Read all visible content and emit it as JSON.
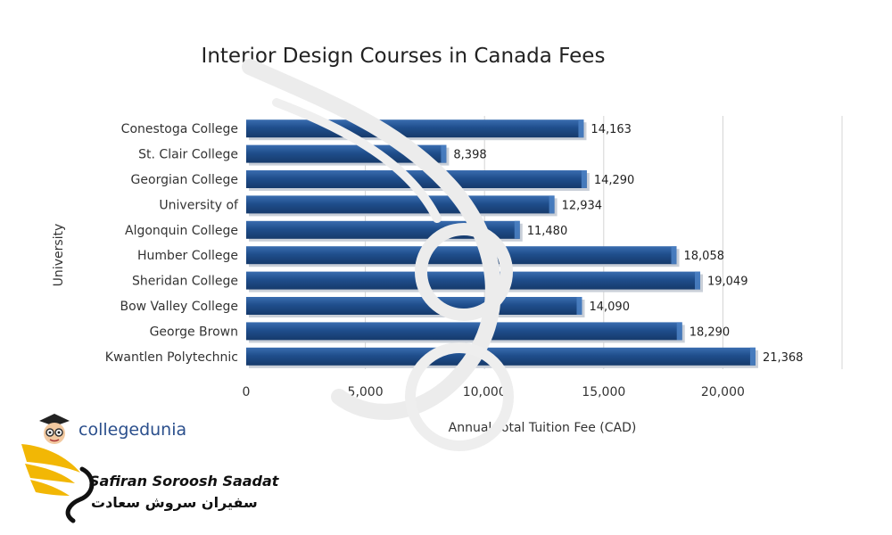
{
  "chart_data": {
    "type": "bar",
    "orientation": "horizontal",
    "title": "Interior Design Courses in Canada Fees",
    "xlabel": "Annual Total Tuition Fee (CAD)",
    "ylabel": "University",
    "categories": [
      "Conestoga College",
      "St. Clair College",
      "Georgian College",
      "University of",
      "Algonquin College",
      "Humber College",
      "Sheridan College",
      "Bow Valley College",
      "George Brown",
      "Kwantlen Polytechnic"
    ],
    "values": [
      14163,
      8398,
      14290,
      12934,
      11480,
      18058,
      19049,
      14090,
      18290,
      21368
    ],
    "value_labels": [
      "14,163",
      "8,398",
      "14,290",
      "12,934",
      "11,480",
      "18,058",
      "19,049",
      "14,090",
      "18,290",
      "21,368"
    ],
    "xticks": [
      0,
      5000,
      10000,
      15000,
      20000
    ],
    "xtick_labels": [
      "0",
      "5,000",
      "10,000",
      "15,000",
      "20,000"
    ],
    "xlim": [
      0,
      25000
    ],
    "grid": true,
    "bar_color": "#1f4e8c"
  },
  "branding": {
    "collegedunia_text": "collegedunia",
    "safiran_en": "Safiran Soroosh Saadat",
    "safiran_fa": "سفیران سروش سعادت"
  }
}
